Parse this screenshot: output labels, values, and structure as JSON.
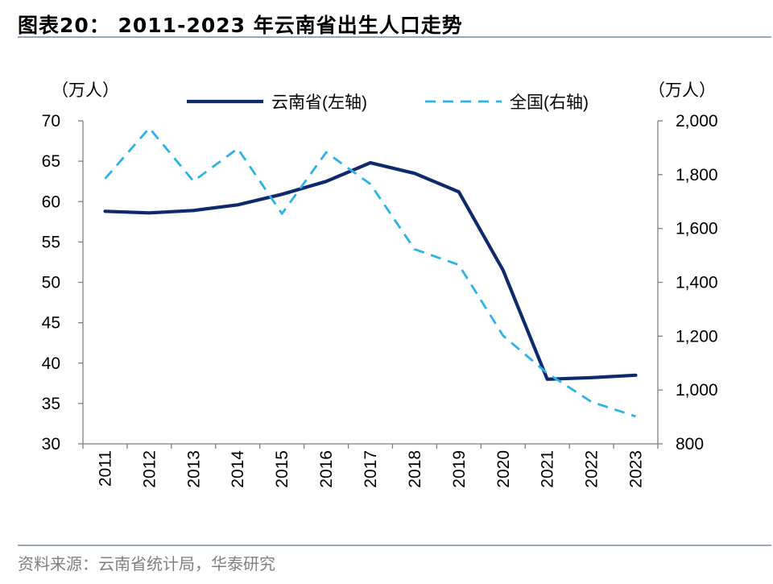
{
  "header": {
    "title": "图表20： 2011-2023 年云南省出生人口走势"
  },
  "footer": {
    "source": "资料来源：云南省统计局，华泰研究"
  },
  "colors": {
    "yunnan": "#0e2a6d",
    "national": "#2cb2e6",
    "axis": "#7f7f7f",
    "rule": "#9aa7b5"
  },
  "chart_data": {
    "type": "line",
    "categories": [
      "2011",
      "2012",
      "2013",
      "2014",
      "2015",
      "2016",
      "2017",
      "2018",
      "2019",
      "2020",
      "2021",
      "2022",
      "2023"
    ],
    "series": [
      {
        "name": "云南省(左轴)",
        "axis": "left",
        "style": "solid",
        "values": [
          58.8,
          58.6,
          58.9,
          59.6,
          60.9,
          62.5,
          64.8,
          63.5,
          61.2,
          51.5,
          38.0,
          38.2,
          38.5
        ]
      },
      {
        "name": "全国(右轴)",
        "axis": "right",
        "style": "dashed",
        "values": [
          1785,
          1973,
          1776,
          1897,
          1655,
          1883,
          1765,
          1523,
          1465,
          1202,
          1062,
          956,
          902
        ]
      }
    ],
    "y_left": {
      "unit": "（万人）",
      "ylim": [
        30,
        70
      ],
      "ticks": [
        "30",
        "35",
        "40",
        "45",
        "50",
        "55",
        "60",
        "65",
        "70"
      ]
    },
    "y_right": {
      "unit": "（万人）",
      "ylim": [
        800,
        2000
      ],
      "ticks": [
        "800",
        "1,000",
        "1,200",
        "1,400",
        "1,600",
        "1,800",
        "2,000"
      ]
    },
    "legend": "top",
    "grid": false
  }
}
